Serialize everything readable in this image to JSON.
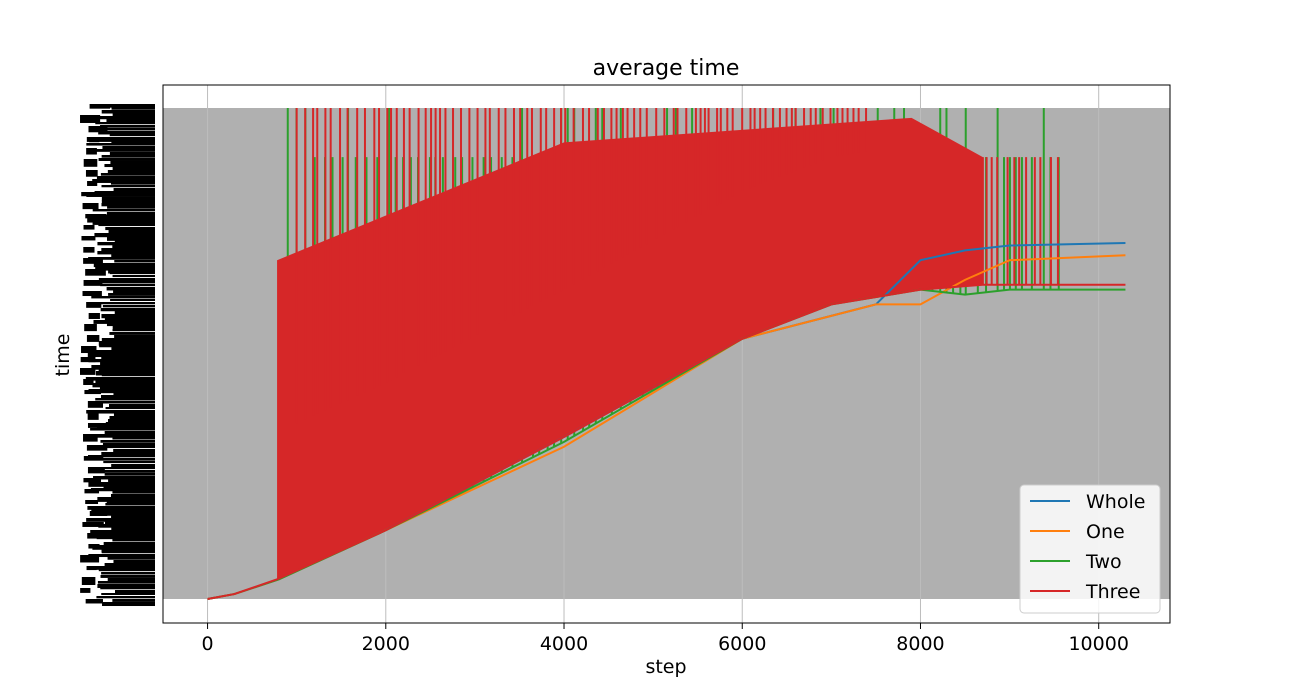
{
  "chart_data": {
    "type": "line",
    "title": "average time",
    "xlabel": "step",
    "ylabel": "time",
    "xlim": [
      -500,
      10800
    ],
    "xticks": [
      0,
      2000,
      4000,
      6000,
      8000,
      10000
    ],
    "x_tick_labels": [
      "0",
      "2000",
      "4000",
      "6000",
      "8000",
      "10000"
    ],
    "y_tick_labels_note": "y-axis tick labels are overprinted and illegible",
    "grid": true,
    "background_band_color": "#b0b0b0",
    "legend_position": "lower right",
    "series": [
      {
        "name": "Whole",
        "color": "#1f77b4",
        "x": [
          0,
          300,
          800,
          2000,
          4000,
          6000,
          7500,
          8000,
          8500,
          9000,
          10300
        ],
        "y": [
          0.0,
          0.01,
          0.04,
          0.14,
          0.33,
          0.53,
          0.6,
          0.69,
          0.71,
          0.72,
          0.725
        ]
      },
      {
        "name": "One",
        "color": "#ff7f0e",
        "x": [
          0,
          300,
          800,
          2000,
          4000,
          6000,
          7500,
          8000,
          8500,
          9000,
          10300
        ],
        "y": [
          0.0,
          0.01,
          0.04,
          0.14,
          0.31,
          0.53,
          0.6,
          0.6,
          0.65,
          0.69,
          0.7
        ]
      },
      {
        "name": "Two",
        "color": "#2ca02c",
        "x": [
          0,
          300,
          800,
          2000,
          4000,
          6000,
          7000,
          8000,
          8500,
          9000,
          10300
        ],
        "y": [
          0.0,
          0.01,
          0.04,
          0.14,
          0.32,
          0.53,
          0.6,
          0.63,
          0.62,
          0.63,
          0.63
        ]
      },
      {
        "name": "Three",
        "color": "#d62728",
        "x": [
          0,
          300,
          780,
          2000,
          4000,
          6000,
          7000,
          8000,
          8700,
          10300
        ],
        "y": [
          0.0,
          0.01,
          0.04,
          0.14,
          0.33,
          0.53,
          0.6,
          0.63,
          0.64,
          0.64
        ]
      }
    ]
  }
}
